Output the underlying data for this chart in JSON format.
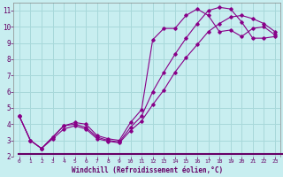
{
  "xlabel": "Windchill (Refroidissement éolien,°C)",
  "bg_color": "#c8eef0",
  "grid_color": "#a8d8da",
  "line_color": "#880088",
  "xlim": [
    -0.5,
    23.5
  ],
  "ylim": [
    2,
    11.5
  ],
  "xticks": [
    0,
    1,
    2,
    3,
    4,
    5,
    6,
    7,
    8,
    9,
    10,
    11,
    12,
    13,
    14,
    15,
    16,
    17,
    18,
    19,
    20,
    21,
    22,
    23
  ],
  "yticks": [
    2,
    3,
    4,
    5,
    6,
    7,
    8,
    9,
    10,
    11
  ],
  "line1_x": [
    0,
    1,
    2,
    3,
    4,
    5,
    6,
    7,
    8,
    9,
    10,
    11,
    12,
    13,
    14,
    15,
    16,
    17,
    18,
    19,
    20,
    21,
    22,
    23
  ],
  "line1_y": [
    4.5,
    3.0,
    2.5,
    3.2,
    3.9,
    4.1,
    4.0,
    3.3,
    3.1,
    3.0,
    4.1,
    4.9,
    9.2,
    9.9,
    9.9,
    10.7,
    11.1,
    10.7,
    9.7,
    9.8,
    9.4,
    9.9,
    10.0,
    9.5
  ],
  "line2_x": [
    0,
    1,
    2,
    3,
    4,
    5,
    6,
    7,
    8,
    9,
    10,
    11,
    12,
    13,
    14,
    15,
    16,
    17,
    18,
    19,
    20,
    21,
    22,
    23
  ],
  "line2_y": [
    4.5,
    3.0,
    2.5,
    3.2,
    3.9,
    4.0,
    3.8,
    3.2,
    3.0,
    2.9,
    3.8,
    4.5,
    6.0,
    7.2,
    8.3,
    9.3,
    10.2,
    11.0,
    11.2,
    11.1,
    10.3,
    9.3,
    9.3,
    9.4
  ],
  "line3_x": [
    0,
    1,
    2,
    3,
    4,
    5,
    6,
    7,
    8,
    9,
    10,
    11,
    12,
    13,
    14,
    15,
    16,
    17,
    18,
    19,
    20,
    21,
    22,
    23
  ],
  "line3_y": [
    4.5,
    3.0,
    2.5,
    3.1,
    3.7,
    3.9,
    3.7,
    3.1,
    2.95,
    2.85,
    3.6,
    4.2,
    5.2,
    6.1,
    7.2,
    8.1,
    8.9,
    9.7,
    10.2,
    10.6,
    10.7,
    10.5,
    10.2,
    9.7
  ]
}
